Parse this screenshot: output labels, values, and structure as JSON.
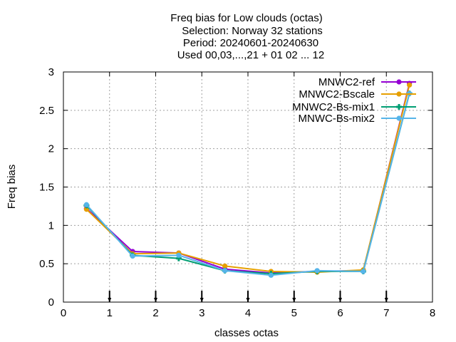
{
  "chart_data": {
    "type": "line",
    "title_lines": [
      "Freq bias  for Low clouds (octas)",
      "Selection: Norway     32 stations",
      "Period: 20240601-20240630",
      "Used 00,03,...,21 + 01 02 ... 12"
    ],
    "xlabel": "classes octas",
    "ylabel": "Freq bias",
    "xlim": [
      0,
      8
    ],
    "ylim": [
      0,
      3
    ],
    "xticks": [
      0,
      1,
      2,
      3,
      4,
      5,
      6,
      7,
      8
    ],
    "yticks": [
      0,
      0.5,
      1,
      1.5,
      2,
      2.5,
      3
    ],
    "xtick_labels": [
      "0",
      "1",
      "2",
      "3",
      "4",
      "5",
      "6",
      "7",
      "8"
    ],
    "ytick_labels": [
      "0",
      "0.5",
      "1",
      "1.5",
      "2",
      "2.5",
      "3"
    ],
    "grid": true,
    "legend_position": "top-right",
    "x": [
      0.5,
      1.5,
      2.5,
      3.5,
      4.5,
      5.5,
      6.5,
      7.5
    ],
    "series": [
      {
        "name": "MNWC2-ref",
        "color": "#9400d3",
        "marker": "filled-circle",
        "values": [
          1.22,
          0.66,
          0.64,
          0.43,
          0.38,
          0.4,
          0.41,
          2.85
        ]
      },
      {
        "name": "MNWC2-Bscale",
        "color": "#e69f00",
        "marker": "filled-circle",
        "values": [
          1.21,
          0.63,
          0.64,
          0.47,
          0.4,
          0.39,
          0.42,
          2.83
        ]
      },
      {
        "name": "MNWC2-Bs-mix1",
        "color": "#009e73",
        "marker": "plus",
        "values": [
          1.26,
          0.61,
          0.57,
          0.41,
          0.37,
          0.4,
          0.4,
          2.72
        ]
      },
      {
        "name": "MNWC-Bs-mix2",
        "color": "#56b4e9",
        "marker": "filled-circle",
        "values": [
          1.27,
          0.6,
          0.61,
          0.41,
          0.35,
          0.41,
          0.4,
          2.72
        ]
      }
    ],
    "bottom_markers_x": [
      1,
      2,
      3,
      4,
      5,
      6,
      7
    ]
  }
}
